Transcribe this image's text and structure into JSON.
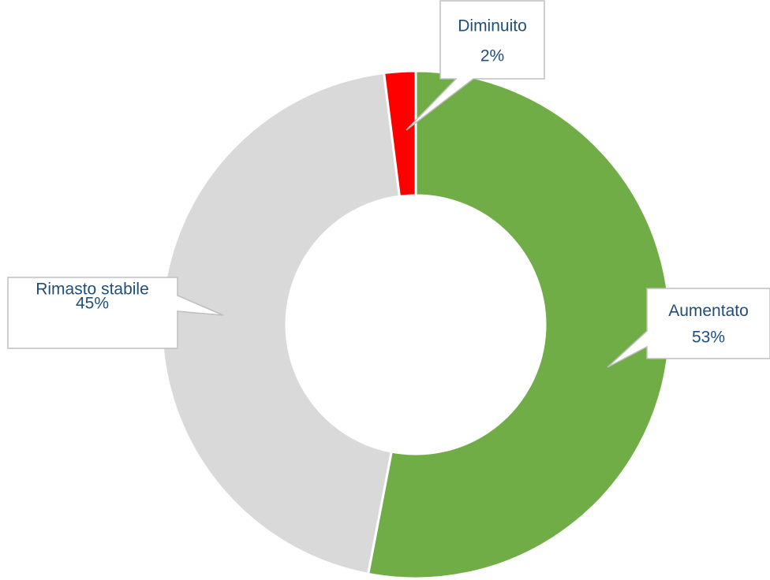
{
  "chart_data": {
    "type": "donut",
    "categories": [
      "Aumentato",
      "Rimasto stabile",
      "Diminuito"
    ],
    "values": [
      53,
      45,
      2
    ],
    "value_labels": [
      "53%",
      "45%",
      "2%"
    ],
    "colors": [
      "#70ad47",
      "#d9d9d9",
      "#ff0000"
    ]
  }
}
